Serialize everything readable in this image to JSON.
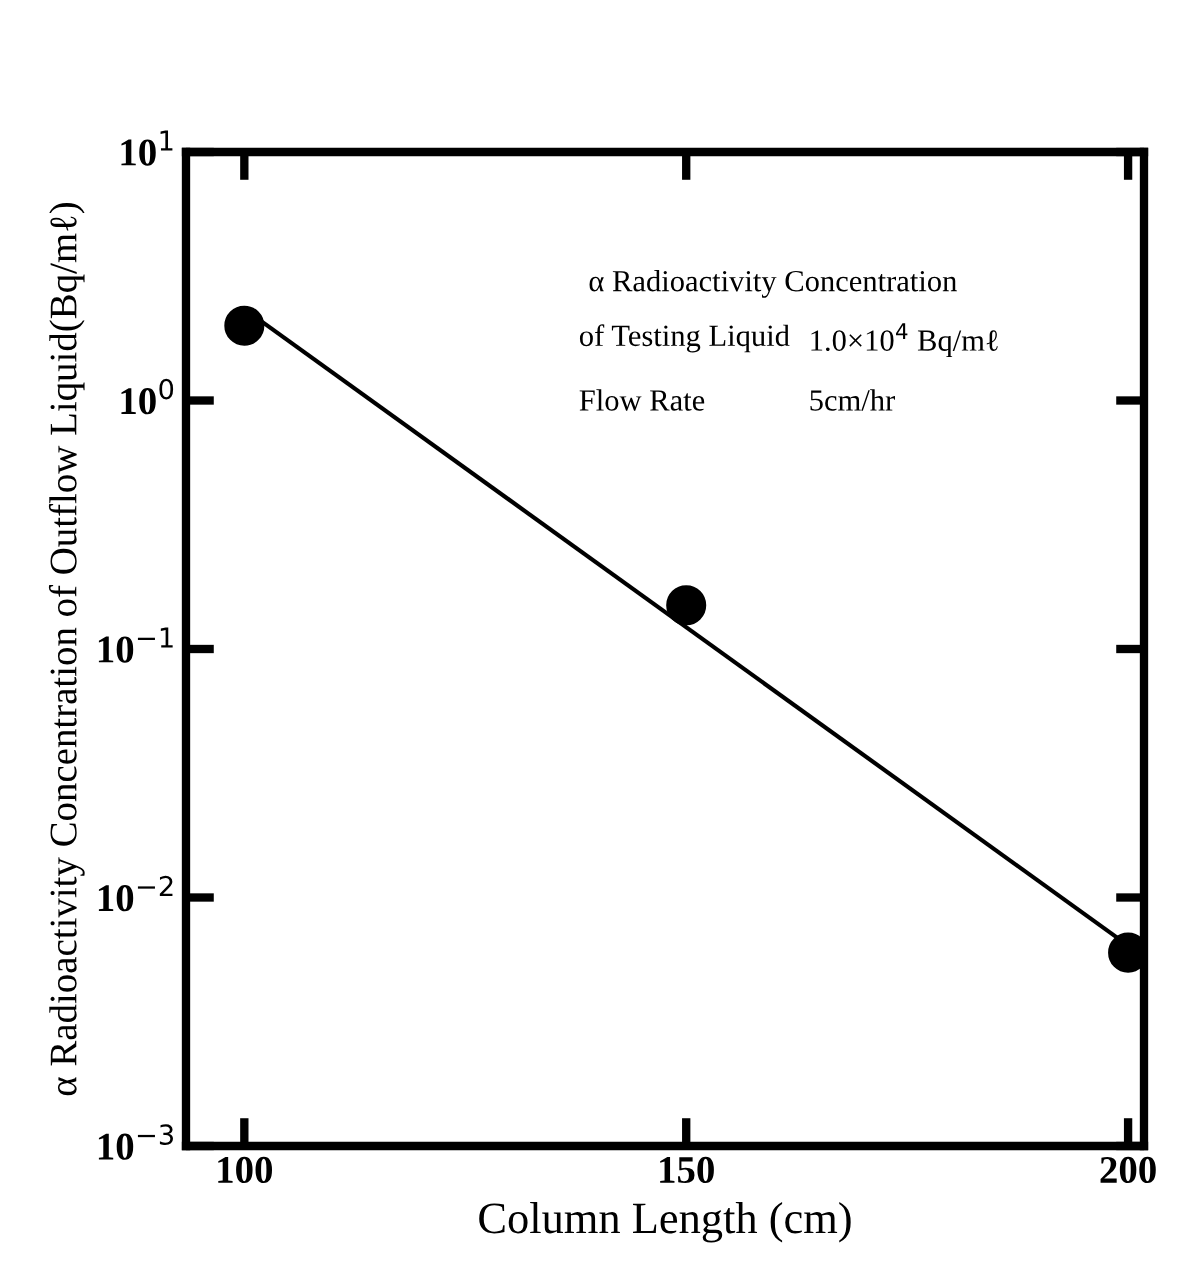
{
  "chart_data": {
    "type": "scatter",
    "xlabel": "Column Length (cm)",
    "ylabel": "α Radioactivity Concentration of Outflow Liquid(Bq/mℓ)",
    "x": [
      100,
      150,
      200
    ],
    "log": "y",
    "grid": false,
    "legend": false,
    "series": [
      {
        "color": "#000000",
        "values": [
          2.0,
          0.15,
          0.006
        ],
        "marker": "circle"
      },
      {
        "type": "line",
        "color": "#000000",
        "x": [
          101,
          199
        ],
        "values": [
          2.2,
          0.0068
        ],
        "line_style": "solid",
        "marker": "none"
      }
    ],
    "xlim": [
      93.4,
      201.8
    ],
    "ylim": [
      0.001,
      10
    ],
    "xticks": [
      100,
      150,
      200
    ],
    "yticks": [
      {
        "value": 0.001,
        "label": "10$^{−3}$"
      },
      {
        "value": 0.01,
        "label": "10$^{−2}$"
      },
      {
        "value": 0.1,
        "label": "10$^{−1}$"
      },
      {
        "value": 1,
        "label": "10$^{0}$"
      },
      {
        "value": 10,
        "label": "10$^{1}$"
      }
    ],
    "annotations": [
      "α Radioactivity Concentration",
      "of Testing Liquid",
      "1.0×10$^{4}$ Bq/mℓ",
      "Flow Rate",
      "5cm/hr"
    ]
  }
}
